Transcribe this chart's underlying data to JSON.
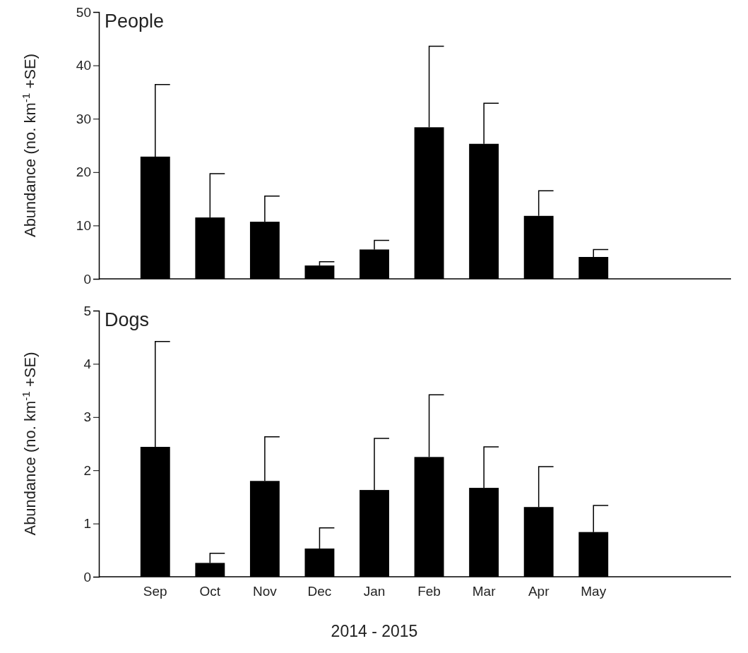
{
  "chart_data": [
    {
      "type": "bar",
      "title": "People",
      "ylabel": "Abundance (no. km$^{-1}$ +SE)",
      "categories": [
        null,
        null,
        null,
        null,
        null,
        null,
        null,
        null,
        null
      ],
      "values": [
        22.9,
        11.5,
        10.7,
        2.5,
        5.5,
        28.4,
        25.3,
        11.8,
        4.1
      ],
      "errors": [
        [
          22.9,
          36.4
        ],
        [
          11.5,
          19.7
        ],
        [
          10.7,
          15.5
        ],
        [
          2.5,
          3.2
        ],
        [
          5.5,
          7.2
        ],
        [
          28.4,
          43.6
        ],
        [
          25.3,
          32.9
        ],
        [
          11.8,
          16.5
        ],
        [
          4.1,
          5.5
        ]
      ],
      "color": "#000000",
      "ylim": [
        0,
        50
      ],
      "yticks": [
        0,
        10,
        20,
        30,
        40,
        50
      ],
      "tick_labels": "y"
    },
    {
      "type": "bar",
      "title": "Dogs",
      "ylabel": "Abundance (no. km$^{-1}$ +SE)",
      "xlabel": "2014 - 2015",
      "categories": [
        "Sep",
        "Oct",
        "Nov",
        "Dec",
        "Jan",
        "Feb",
        "Mar",
        "Apr",
        "May"
      ],
      "values": [
        2.44,
        0.26,
        1.8,
        0.53,
        1.63,
        2.25,
        1.67,
        1.31,
        0.84
      ],
      "errors": [
        [
          2.44,
          4.42
        ],
        [
          0.26,
          0.44
        ],
        [
          1.8,
          2.63
        ],
        [
          0.53,
          0.92
        ],
        [
          1.63,
          2.6
        ],
        [
          2.25,
          3.42
        ],
        [
          1.67,
          2.44
        ],
        [
          1.31,
          2.07
        ],
        [
          0.84,
          1.34
        ]
      ],
      "color": "#000000",
      "ylim": [
        0,
        5
      ],
      "yticks": [
        0,
        1,
        2,
        3,
        4,
        5
      ]
    }
  ]
}
